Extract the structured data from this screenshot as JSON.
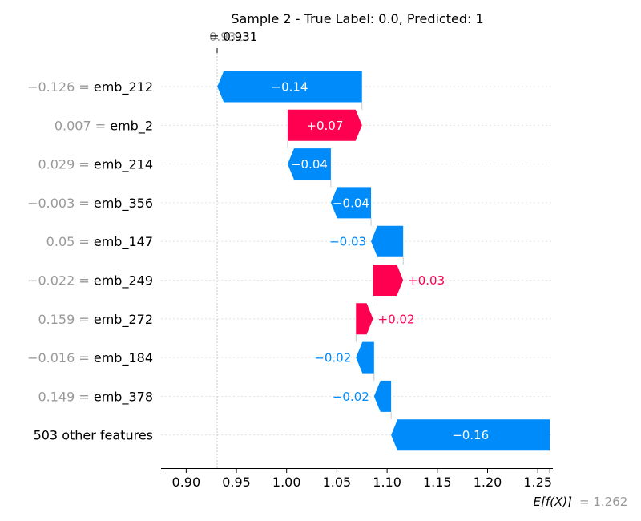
{
  "title": "Sample 2 - True Label: 0.0, Predicted: 1",
  "fx_label": "f(x)",
  "fx_value": "= 0.931",
  "fx_value_overlap": "0.931",
  "ex_label": "E[f(X)]",
  "ex_value": "= 1.262",
  "colors": {
    "positive": "#ff0051",
    "negative": "#008bfb",
    "grey": "#999999"
  },
  "chart_data": {
    "type": "waterfall",
    "base_value": 1.262,
    "output_value": 0.931,
    "xlim": [
      0.875,
      1.265
    ],
    "x_ticks": [
      0.9,
      0.95,
      1.0,
      1.05,
      1.1,
      1.15,
      1.2,
      1.25
    ],
    "x_tick_labels": [
      "0.90",
      "0.95",
      "1.00",
      "1.05",
      "1.10",
      "1.15",
      "1.20",
      "1.25"
    ],
    "features": [
      {
        "value_label": "−0.126",
        "name": "emb_212",
        "shap": -0.14,
        "label": "−0.14",
        "start": 1.075,
        "end": 0.931
      },
      {
        "value_label": "0.007",
        "name": "emb_2",
        "shap": 0.07,
        "label": "+0.07",
        "start": 1.001,
        "end": 1.075
      },
      {
        "value_label": "0.029",
        "name": "emb_214",
        "shap": -0.04,
        "label": "−0.04",
        "start": 1.044,
        "end": 1.001
      },
      {
        "value_label": "−0.003",
        "name": "emb_356",
        "shap": -0.04,
        "label": "−0.04",
        "start": 1.084,
        "end": 1.044
      },
      {
        "value_label": "0.05",
        "name": "emb_147",
        "shap": -0.03,
        "label": "−0.03",
        "start": 1.116,
        "end": 1.084
      },
      {
        "value_label": "−0.022",
        "name": "emb_249",
        "shap": 0.03,
        "label": "+0.03",
        "start": 1.086,
        "end": 1.116
      },
      {
        "value_label": "0.159",
        "name": "emb_272",
        "shap": 0.02,
        "label": "+0.02",
        "start": 1.069,
        "end": 1.086
      },
      {
        "value_label": "−0.016",
        "name": "emb_184",
        "shap": -0.02,
        "label": "−0.02",
        "start": 1.087,
        "end": 1.069
      },
      {
        "value_label": "0.149",
        "name": "emb_378",
        "shap": -0.02,
        "label": "−0.02",
        "start": 1.104,
        "end": 1.087
      },
      {
        "value_label": "",
        "name": "503 other features",
        "shap": -0.16,
        "label": "−0.16",
        "start": 1.262,
        "end": 1.104
      }
    ]
  }
}
